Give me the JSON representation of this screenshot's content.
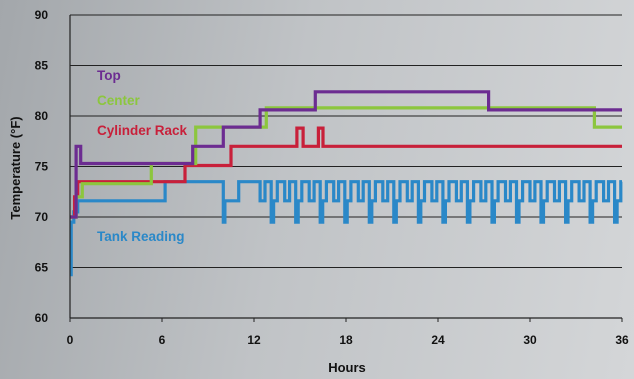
{
  "chart_data": {
    "type": "line",
    "title": "",
    "xlabel": "Hours",
    "ylabel": "Temperature (°F)",
    "xlim": [
      0,
      36
    ],
    "ylim": [
      60,
      90
    ],
    "xticks": [
      0,
      6,
      12,
      18,
      24,
      30,
      36
    ],
    "yticks": [
      60,
      65,
      70,
      75,
      80,
      85,
      90
    ],
    "grid": "horizontal",
    "line_shape": "step",
    "series": [
      {
        "name": "Tank Reading",
        "color": "#2a88c8",
        "x": [
          0,
          0.08,
          0.08,
          0.25,
          0.25,
          0.5,
          0.5,
          6.2,
          6.2,
          10,
          10,
          10.1,
          10.1,
          11,
          11,
          12
        ],
        "y": [
          64.3,
          64.3,
          69.5,
          69.5,
          70.5,
          70.5,
          71.6,
          71.6,
          73.5,
          73.5,
          69.5,
          69.5,
          71.6,
          71.6,
          73.5,
          73.5
        ],
        "cycle": {
          "start": 12,
          "end": 36,
          "high": 73.5,
          "mid": 71.6,
          "low": 69.5
        }
      },
      {
        "name": "Cylinder Rack",
        "color": "#c8203a",
        "x": [
          0,
          0.3,
          0.3,
          0.5,
          0.5,
          7.5,
          7.5,
          10.5,
          10.5,
          14.8,
          14.8,
          15.2,
          15.2,
          16.2,
          16.2,
          16.5,
          16.5,
          36
        ],
        "y": [
          70,
          70,
          72,
          72,
          73.5,
          73.5,
          75.1,
          75.1,
          77,
          77,
          78.8,
          78.8,
          77,
          77,
          78.8,
          78.8,
          77,
          77
        ]
      },
      {
        "name": "Center",
        "color": "#8cc63e",
        "x": [
          0,
          0.4,
          0.4,
          0.8,
          0.8,
          5.3,
          5.3,
          8.2,
          8.2,
          12.8,
          12.8,
          27.3,
          27.3,
          34.2,
          34.2,
          36
        ],
        "y": [
          70,
          70,
          72,
          72,
          73.3,
          73.3,
          75.3,
          75.3,
          78.9,
          78.9,
          80.8,
          80.8,
          80.8,
          80.8,
          78.9,
          78.9
        ]
      },
      {
        "name": "Top",
        "color": "#6c2c91",
        "x": [
          0,
          0.4,
          0.4,
          0.7,
          0.7,
          1.0,
          1.0,
          8.0,
          8.0,
          10.0,
          10.0,
          12.4,
          12.4,
          16.0,
          16.0,
          27.3,
          27.3,
          36
        ],
        "y": [
          70,
          70,
          77,
          77,
          75.3,
          75.3,
          75.3,
          75.3,
          77,
          77,
          78.9,
          78.9,
          80.6,
          80.6,
          82.4,
          82.4,
          80.6,
          80.6
        ]
      }
    ],
    "labels": [
      {
        "series": "Top",
        "text": "Top"
      },
      {
        "series": "Center",
        "text": "Center"
      },
      {
        "series": "Cylinder Rack",
        "text": "Cylinder Rack"
      },
      {
        "series": "Tank Reading",
        "text": "Tank Reading"
      }
    ]
  }
}
